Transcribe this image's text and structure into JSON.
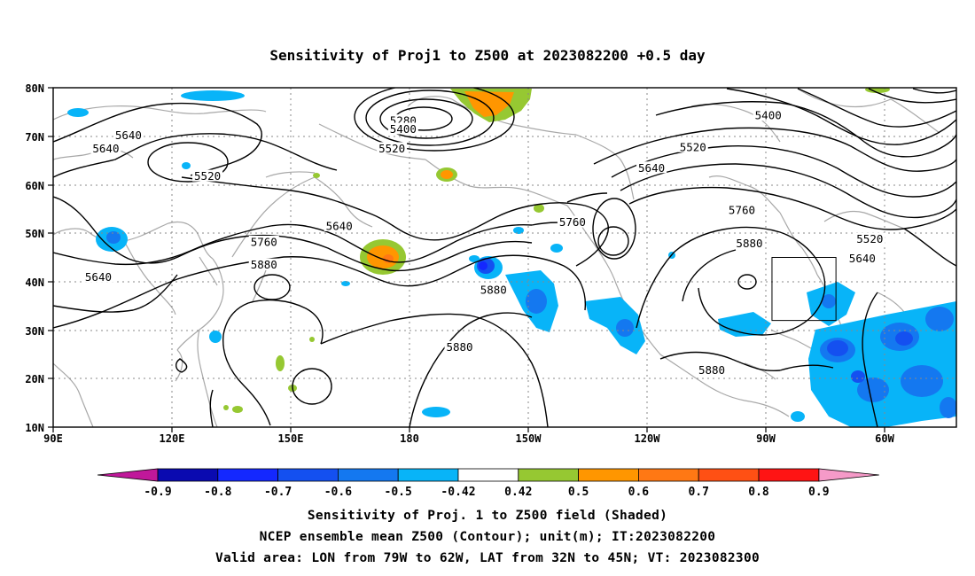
{
  "title": "Sensitivity of Proj1 to Z500 at 2023082200 +0.5 day",
  "lat_ticks": [
    "80N",
    "70N",
    "60N",
    "50N",
    "40N",
    "30N",
    "20N",
    "10N"
  ],
  "lon_ticks": [
    "90E",
    "120E",
    "150E",
    "180",
    "150W",
    "120W",
    "90W",
    "60W"
  ],
  "contour_labels": [
    {
      "text": "5280",
      "lon": 183,
      "lat": 73.2
    },
    {
      "text": "5400",
      "lon": 183,
      "lat": 71.5
    },
    {
      "text": "5520",
      "lon": 180,
      "lat": 67.5
    },
    {
      "text": "5640",
      "lon": 110,
      "lat": 70.2
    },
    {
      "text": "5640",
      "lon": 104,
      "lat": 67.5
    },
    {
      "text": "5520",
      "lon": 131,
      "lat": 61.8
    },
    {
      "text": "5640",
      "lon": 102,
      "lat": 41.0
    },
    {
      "text": "5760",
      "lon": 146,
      "lat": 48.2
    },
    {
      "text": "5640",
      "lon": 166,
      "lat": 51.5
    },
    {
      "text": "5880",
      "lon": 146,
      "lat": 43.5
    },
    {
      "text": "5880",
      "lon": 207,
      "lat": 38.3
    },
    {
      "text": "5880",
      "lon": 198,
      "lat": 26.5
    },
    {
      "text": "5760",
      "lon": 228,
      "lat": 52.3
    },
    {
      "text": "5400",
      "lon": 280,
      "lat": 74.3
    },
    {
      "text": "5520",
      "lon": 260,
      "lat": 67.8
    },
    {
      "text": "5640",
      "lon": 249,
      "lat": 63.5
    },
    {
      "text": "5760",
      "lon": 273,
      "lat": 54.8
    },
    {
      "text": "5880",
      "lon": 275,
      "lat": 47.9
    },
    {
      "text": "5520",
      "lon": 307,
      "lat": 48.8
    },
    {
      "text": "5640",
      "lon": 305,
      "lat": 44.8
    },
    {
      "text": "5880",
      "lon": 265,
      "lat": 21.8
    }
  ],
  "valid_area": {
    "lon_min": -79,
    "lon_max": -62,
    "lat_min": 32,
    "lat_max": 45
  },
  "colorbar": {
    "labels": [
      "-0.9",
      "-0.8",
      "-0.7",
      "-0.6",
      "-0.5",
      "-0.42",
      "0.42",
      "0.5",
      "0.6",
      "0.7",
      "0.8",
      "0.9"
    ],
    "low_end_color": "#c0189a",
    "high_end_color": "#f59ac8",
    "colors": [
      "#0a0ab0",
      "#1428ff",
      "#1450f0",
      "#1478f0",
      "#08b4f8",
      "#ffffff",
      "#96c832",
      "#ff9600",
      "#ff7814",
      "#ff5014",
      "#ff1414"
    ]
  },
  "captions": [
    "Sensitivity of Proj. 1 to Z500 field (Shaded)",
    "NCEP ensemble mean Z500 (Contour); unit(m); IT:2023082200",
    "Valid area: LON from 79W to 62W, LAT from 32N to 45N; VT: 2023082300"
  ]
}
